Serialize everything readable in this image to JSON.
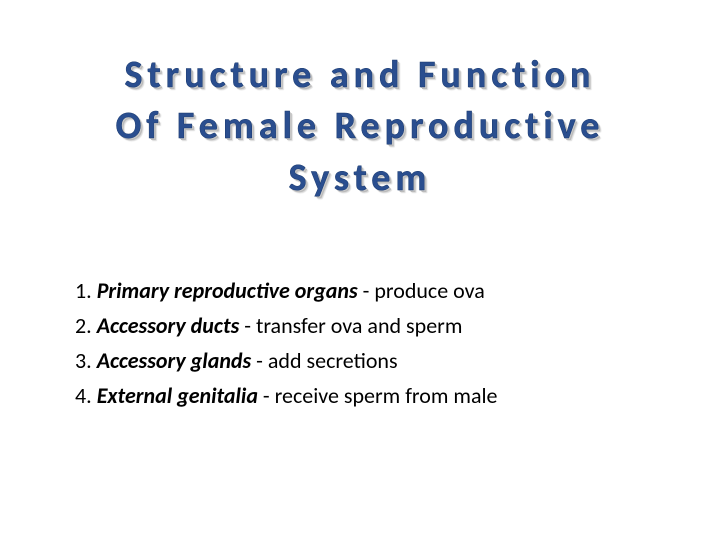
{
  "title": {
    "line1": "Structure and Function",
    "line2": "Of Female Reproductive",
    "line3": "System",
    "color": "#2a4e8f",
    "fontsize": 38,
    "letter_spacing": 5
  },
  "items": [
    {
      "num": "1.",
      "term": "Primary reproductive organs",
      "desc": " - produce ova"
    },
    {
      "num": "2.",
      "term": "Accessory ducts",
      "desc": " - transfer ova and sperm"
    },
    {
      "num": "3.",
      "term": "Accessory glands",
      "desc": " - add secretions"
    },
    {
      "num": "4.",
      "term": "External genitalia",
      "desc": " - receive sperm from male"
    }
  ],
  "body_fontsize": 22,
  "background_color": "#ffffff",
  "text_color": "#000000"
}
